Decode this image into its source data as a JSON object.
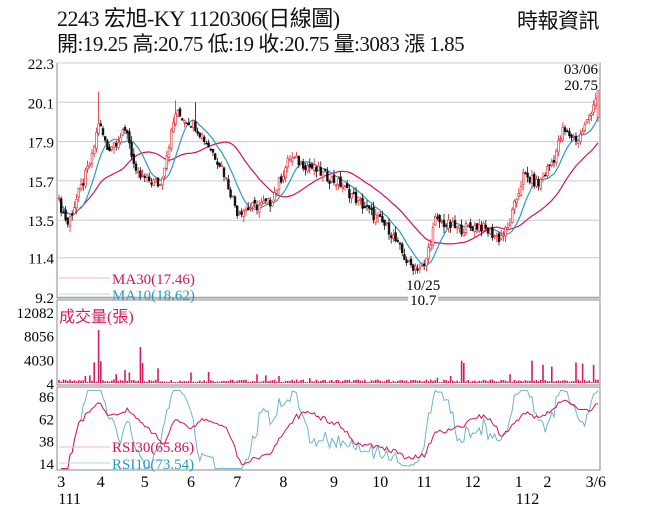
{
  "header": {
    "title": "2243  宏旭-KY 1120306(日線圖)",
    "source": "時報資訊",
    "quote": "開:19.25 高:20.75 低:19 收:20.75 量:3083 漲 1.85"
  },
  "chart_data": {
    "type": "candlestick",
    "price_axis": {
      "ticks": [
        "22.3",
        "20.1",
        "17.9",
        "15.7",
        "13.5",
        "11.4",
        "9.2"
      ],
      "ylim": [
        9.2,
        22.3
      ]
    },
    "close_keypoints": [
      [
        0,
        14.5
      ],
      [
        4,
        13.3
      ],
      [
        15,
        17.0
      ],
      [
        18,
        19.0
      ],
      [
        22,
        17.5
      ],
      [
        31,
        18.5
      ],
      [
        35,
        16.0
      ],
      [
        46,
        15.5
      ],
      [
        53,
        19.5
      ],
      [
        62,
        18.8
      ],
      [
        69,
        17.5
      ],
      [
        74,
        16.5
      ],
      [
        81,
        14.0
      ],
      [
        96,
        14.5
      ],
      [
        105,
        17.0
      ],
      [
        114,
        16.5
      ],
      [
        128,
        15.5
      ],
      [
        141,
        14.0
      ],
      [
        150,
        13.0
      ],
      [
        159,
        11.0
      ],
      [
        166,
        10.8
      ],
      [
        171,
        13.5
      ],
      [
        182,
        13.0
      ],
      [
        191,
        13.2
      ],
      [
        200,
        12.5
      ],
      [
        204,
        13.0
      ],
      [
        211,
        16.0
      ],
      [
        218,
        15.5
      ],
      [
        225,
        17.0
      ],
      [
        229,
        18.5
      ],
      [
        236,
        18.0
      ],
      [
        240,
        19.0
      ],
      [
        245,
        20.75
      ]
    ],
    "last": {
      "date": "03/06",
      "close": "20.75"
    },
    "low_mark": {
      "date": "10/25",
      "price": "10.7"
    },
    "ma": [
      {
        "name": "MA30",
        "label": "MA30(17.46)",
        "period": 30,
        "color": "#d4145a"
      },
      {
        "name": "MA10",
        "label": "MA10(18.62)",
        "period": 10,
        "color": "#2b9ac0"
      }
    ],
    "volume": {
      "title": "成交量(張)",
      "ticks": [
        "12082",
        "8056",
        "4030",
        "4"
      ],
      "ylim": [
        0,
        12082
      ],
      "spikes": [
        [
          12,
          1200
        ],
        [
          14,
          1300
        ],
        [
          16,
          3500
        ],
        [
          18,
          9000
        ],
        [
          19,
          3700
        ],
        [
          26,
          1500
        ],
        [
          30,
          2200
        ],
        [
          32,
          1800
        ],
        [
          37,
          6100
        ],
        [
          38,
          3400
        ],
        [
          45,
          2500
        ],
        [
          60,
          1800
        ],
        [
          68,
          1900
        ],
        [
          90,
          1500
        ],
        [
          94,
          1300
        ],
        [
          100,
          1200
        ],
        [
          114,
          800
        ],
        [
          150,
          600
        ],
        [
          161,
          500
        ],
        [
          172,
          900
        ],
        [
          178,
          1200
        ],
        [
          183,
          3800
        ],
        [
          184,
          3400
        ],
        [
          205,
          1500
        ],
        [
          215,
          3800
        ],
        [
          220,
          3100
        ],
        [
          224,
          2800
        ],
        [
          235,
          3500
        ],
        [
          238,
          3300
        ],
        [
          243,
          3083
        ]
      ],
      "color": "#d81b60"
    },
    "rsi": [
      {
        "name": "RSI30",
        "label": "RSI30(65.86)",
        "period": 30,
        "color": "#d4145a"
      },
      {
        "name": "RSI10",
        "label": "RSI10(73.54)",
        "period": 10,
        "color": "#6fb3cc"
      }
    ],
    "rsi_axis": {
      "ticks": [
        "86",
        "62",
        "38",
        "14"
      ]
    },
    "x_axis": {
      "ticks": [
        {
          "day": 1,
          "label": "3"
        },
        {
          "day": 19,
          "label": "4"
        },
        {
          "day": 39,
          "label": "5"
        },
        {
          "day": 60,
          "label": "6"
        },
        {
          "day": 81,
          "label": "7"
        },
        {
          "day": 102,
          "label": "8"
        },
        {
          "day": 125,
          "label": "9"
        },
        {
          "day": 146,
          "label": "10"
        },
        {
          "day": 166,
          "label": "11"
        },
        {
          "day": 188,
          "label": "12"
        },
        {
          "day": 209,
          "label": "1"
        },
        {
          "day": 222,
          "label": "2"
        },
        {
          "day": 244,
          "label": "3/6"
        }
      ],
      "years": [
        {
          "day": 1,
          "label": "111"
        },
        {
          "day": 209,
          "label": "112"
        }
      ]
    },
    "days": 246
  }
}
